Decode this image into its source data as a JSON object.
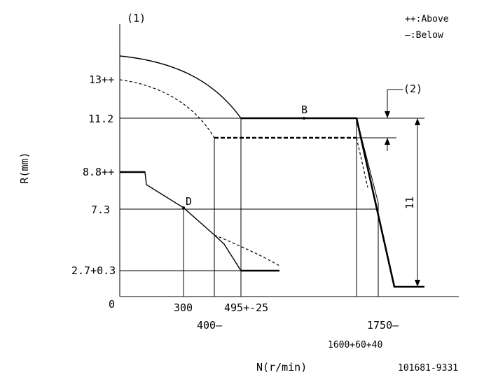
{
  "figure_label": "(1)",
  "note_label": "(2)",
  "legend": {
    "above": "++:Above",
    "below": "—:Below"
  },
  "axes": {
    "y_label": "R(mm)",
    "x_label": "N(r/min)",
    "origin": "0"
  },
  "y_ticks": [
    "13++",
    "11.2",
    "8.8++",
    "7.3",
    "2.7+0.3"
  ],
  "x_ticks": [
    "300",
    "400—",
    "495+-25",
    "1600+60+40",
    "1750—"
  ],
  "points": {
    "b": "B",
    "d": "D"
  },
  "dimension": "11",
  "part_number": "101681-9331"
}
